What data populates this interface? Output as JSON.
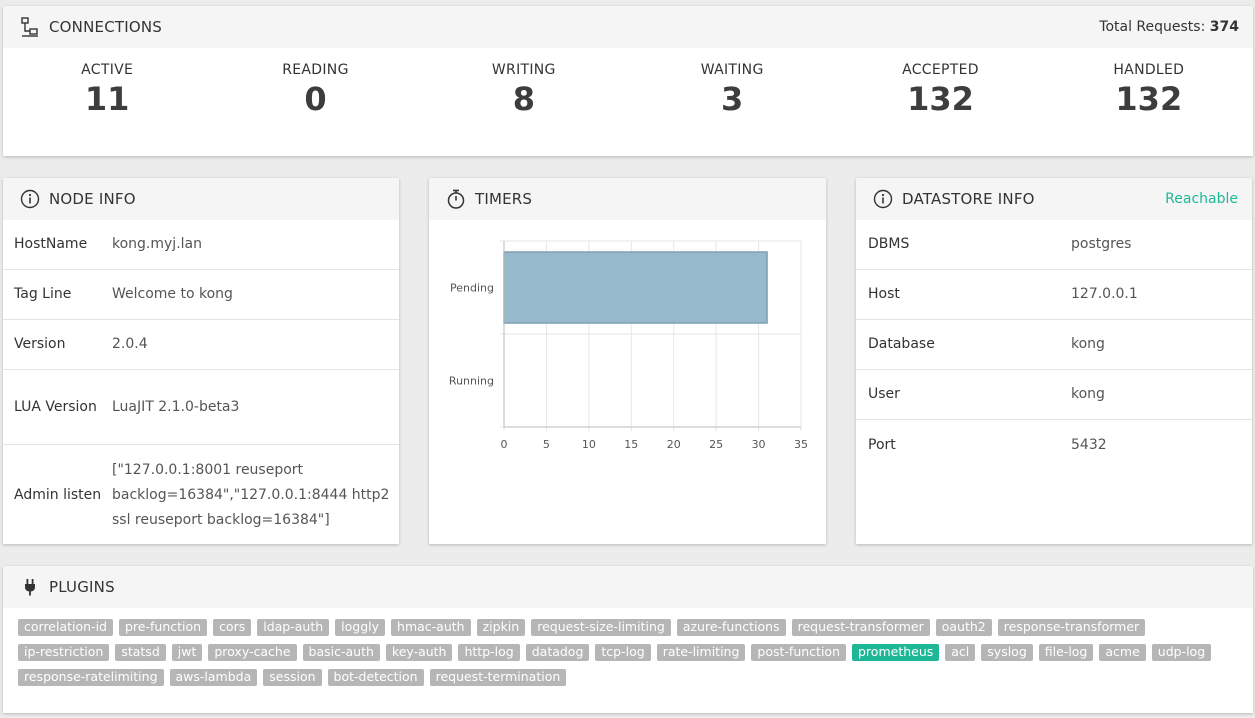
{
  "connections": {
    "title": "CONNECTIONS",
    "total_label": "Total Requests:",
    "total_value": "374",
    "stats": [
      {
        "label": "ACTIVE",
        "value": "11"
      },
      {
        "label": "READING",
        "value": "0"
      },
      {
        "label": "WRITING",
        "value": "8"
      },
      {
        "label": "WAITING",
        "value": "3"
      },
      {
        "label": "ACCEPTED",
        "value": "132"
      },
      {
        "label": "HANDLED",
        "value": "132"
      }
    ]
  },
  "node_info": {
    "title": "NODE INFO",
    "rows": [
      {
        "key": "HostName",
        "value": "kong.myj.lan"
      },
      {
        "key": "Tag Line",
        "value": "Welcome to kong"
      },
      {
        "key": "Version",
        "value": "2.0.4"
      },
      {
        "key": "LUA Version",
        "value": "LuaJIT 2.1.0-beta3"
      },
      {
        "key": "Admin listen",
        "value": "[\"127.0.0.1:8001 reuseport backlog=16384\",\"127.0.0.1:8444 http2 ssl reuseport backlog=16384\"]"
      }
    ]
  },
  "timers": {
    "title": "TIMERS",
    "chart_data": {
      "type": "bar",
      "orientation": "horizontal",
      "categories": [
        "Pending",
        "Running"
      ],
      "values": [
        31,
        0
      ],
      "xlim": [
        0,
        35
      ],
      "xticks": [
        "0",
        "5",
        "10",
        "15",
        "20",
        "25",
        "30",
        "35"
      ],
      "bar_color": "#97b9cc",
      "grid": true
    }
  },
  "datastore": {
    "title": "DATASTORE INFO",
    "status": "Reachable",
    "rows": [
      {
        "key": "DBMS",
        "value": "postgres"
      },
      {
        "key": "Host",
        "value": "127.0.0.1"
      },
      {
        "key": "Database",
        "value": "kong"
      },
      {
        "key": "User",
        "value": "kong"
      },
      {
        "key": "Port",
        "value": "5432"
      }
    ]
  },
  "plugins": {
    "title": "PLUGINS",
    "items": [
      {
        "name": "correlation-id",
        "active": false
      },
      {
        "name": "pre-function",
        "active": false
      },
      {
        "name": "cors",
        "active": false
      },
      {
        "name": "ldap-auth",
        "active": false
      },
      {
        "name": "loggly",
        "active": false
      },
      {
        "name": "hmac-auth",
        "active": false
      },
      {
        "name": "zipkin",
        "active": false
      },
      {
        "name": "request-size-limiting",
        "active": false
      },
      {
        "name": "azure-functions",
        "active": false
      },
      {
        "name": "request-transformer",
        "active": false
      },
      {
        "name": "oauth2",
        "active": false
      },
      {
        "name": "response-transformer",
        "active": false
      },
      {
        "name": "ip-restriction",
        "active": false
      },
      {
        "name": "statsd",
        "active": false
      },
      {
        "name": "jwt",
        "active": false
      },
      {
        "name": "proxy-cache",
        "active": false
      },
      {
        "name": "basic-auth",
        "active": false
      },
      {
        "name": "key-auth",
        "active": false
      },
      {
        "name": "http-log",
        "active": false
      },
      {
        "name": "datadog",
        "active": false
      },
      {
        "name": "tcp-log",
        "active": false
      },
      {
        "name": "rate-limiting",
        "active": false
      },
      {
        "name": "post-function",
        "active": false
      },
      {
        "name": "prometheus",
        "active": true
      },
      {
        "name": "acl",
        "active": false
      },
      {
        "name": "syslog",
        "active": false
      },
      {
        "name": "file-log",
        "active": false
      },
      {
        "name": "acme",
        "active": false
      },
      {
        "name": "udp-log",
        "active": false
      },
      {
        "name": "response-ratelimiting",
        "active": false
      },
      {
        "name": "aws-lambda",
        "active": false
      },
      {
        "name": "session",
        "active": false
      },
      {
        "name": "bot-detection",
        "active": false
      },
      {
        "name": "request-termination",
        "active": false
      }
    ]
  },
  "icons": {
    "connections": "network-icon",
    "node_info": "info-icon",
    "timers": "stopwatch-icon",
    "datastore": "info-icon",
    "plugins": "plug-icon"
  },
  "colors": {
    "accent": "#1fb896",
    "tag": "#b6b6b6"
  }
}
